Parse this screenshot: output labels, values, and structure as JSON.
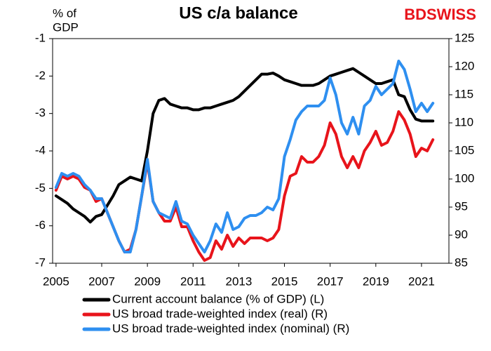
{
  "chart_data": {
    "type": "line",
    "title": "US c/a balance",
    "y_label": [
      "% of",
      "GDP"
    ],
    "logo": [
      "BD",
      "SWISS"
    ],
    "x": [
      2005,
      2005.25,
      2005.5,
      2005.75,
      2006,
      2006.25,
      2006.5,
      2006.75,
      2007,
      2007.25,
      2007.5,
      2007.75,
      2008,
      2008.25,
      2008.5,
      2008.75,
      2009,
      2009.25,
      2009.5,
      2009.75,
      2010,
      2010.25,
      2010.5,
      2010.75,
      2011,
      2011.25,
      2011.5,
      2011.75,
      2012,
      2012.25,
      2012.5,
      2012.75,
      2013,
      2013.25,
      2013.5,
      2013.75,
      2014,
      2014.25,
      2014.5,
      2014.75,
      2015,
      2015.25,
      2015.5,
      2015.75,
      2016,
      2016.25,
      2016.5,
      2016.75,
      2017,
      2017.25,
      2017.5,
      2017.75,
      2018,
      2018.25,
      2018.5,
      2018.75,
      2019,
      2019.25,
      2019.5,
      2019.75,
      2020,
      2020.25,
      2020.5,
      2020.75,
      2021,
      2021.25,
      2021.5
    ],
    "xlim": [
      2004.85,
      2022.2
    ],
    "xticks": [
      2005,
      2007,
      2009,
      2011,
      2013,
      2015,
      2017,
      2019,
      2021
    ],
    "ylim": [
      -7,
      -1
    ],
    "yticks": [
      -7,
      -6,
      -5,
      -4,
      -3,
      -2,
      -1
    ],
    "y2lim": [
      85,
      125
    ],
    "y2ticks": [
      85,
      90,
      95,
      100,
      105,
      110,
      115,
      120,
      125
    ],
    "grid": false,
    "legend": "bottom",
    "series": [
      {
        "name": "Current account balance (% of GDP) (L)",
        "color": "#000000",
        "axis": "y",
        "values": [
          -5.2,
          -5.3,
          -5.4,
          -5.55,
          -5.65,
          -5.75,
          -5.9,
          -5.75,
          -5.7,
          -5.45,
          -5.2,
          -4.9,
          -4.8,
          -4.7,
          -4.75,
          -4.8,
          -4.0,
          -3.0,
          -2.65,
          -2.6,
          -2.75,
          -2.8,
          -2.85,
          -2.85,
          -2.9,
          -2.9,
          -2.85,
          -2.85,
          -2.8,
          -2.75,
          -2.7,
          -2.65,
          -2.55,
          -2.4,
          -2.25,
          -2.1,
          -1.95,
          -1.95,
          -1.92,
          -2.0,
          -2.1,
          -2.15,
          -2.2,
          -2.25,
          -2.25,
          -2.25,
          -2.2,
          -2.1,
          -2.0,
          -1.95,
          -1.9,
          -1.85,
          -1.8,
          -1.9,
          -2.0,
          -2.1,
          -2.2,
          -2.2,
          -2.15,
          -2.1,
          -2.5,
          -2.55,
          -2.9,
          -3.15,
          -3.2,
          -3.2,
          -3.2
        ]
      },
      {
        "name": "US broad trade-weighted index (real) (R)",
        "color": "#e8141b",
        "axis": "y2",
        "values": [
          98,
          100.5,
          100,
          100.5,
          100,
          98.5,
          98,
          96,
          96.5,
          94,
          91.5,
          89,
          87,
          87.5,
          91,
          97,
          103,
          96,
          94,
          92.5,
          92.5,
          95,
          91.5,
          91.5,
          89,
          87,
          85.5,
          86,
          89,
          87.5,
          90,
          88,
          89.5,
          88.5,
          89.5,
          89.5,
          89.5,
          89,
          89.5,
          91,
          97,
          100.5,
          101,
          104,
          103,
          103,
          104,
          106,
          110,
          108,
          104,
          102,
          104,
          102,
          105,
          106.5,
          108.5,
          106,
          106.5,
          108.5,
          112,
          110.5,
          108,
          104,
          105.5,
          105,
          107
        ]
      },
      {
        "name": "US broad trade-weighted index (nominal) (R)",
        "color": "#2e8ff0",
        "axis": "y2",
        "values": [
          98.5,
          101,
          100.5,
          101,
          100.5,
          99,
          98,
          96.5,
          96.5,
          94,
          91.5,
          89,
          87,
          87,
          91,
          97,
          103.5,
          96,
          94,
          93.5,
          93,
          96,
          92.5,
          92,
          90,
          88.5,
          87,
          89,
          92,
          90.5,
          94,
          91,
          91.5,
          93,
          93.5,
          93.5,
          94,
          95,
          94.5,
          96.5,
          104,
          107,
          110.5,
          112,
          113,
          113,
          113,
          114,
          118,
          115,
          110,
          108,
          111,
          108,
          113,
          114,
          116.5,
          115,
          116,
          117,
          121,
          119.5,
          116,
          112,
          113.5,
          112,
          113.5
        ]
      }
    ]
  }
}
